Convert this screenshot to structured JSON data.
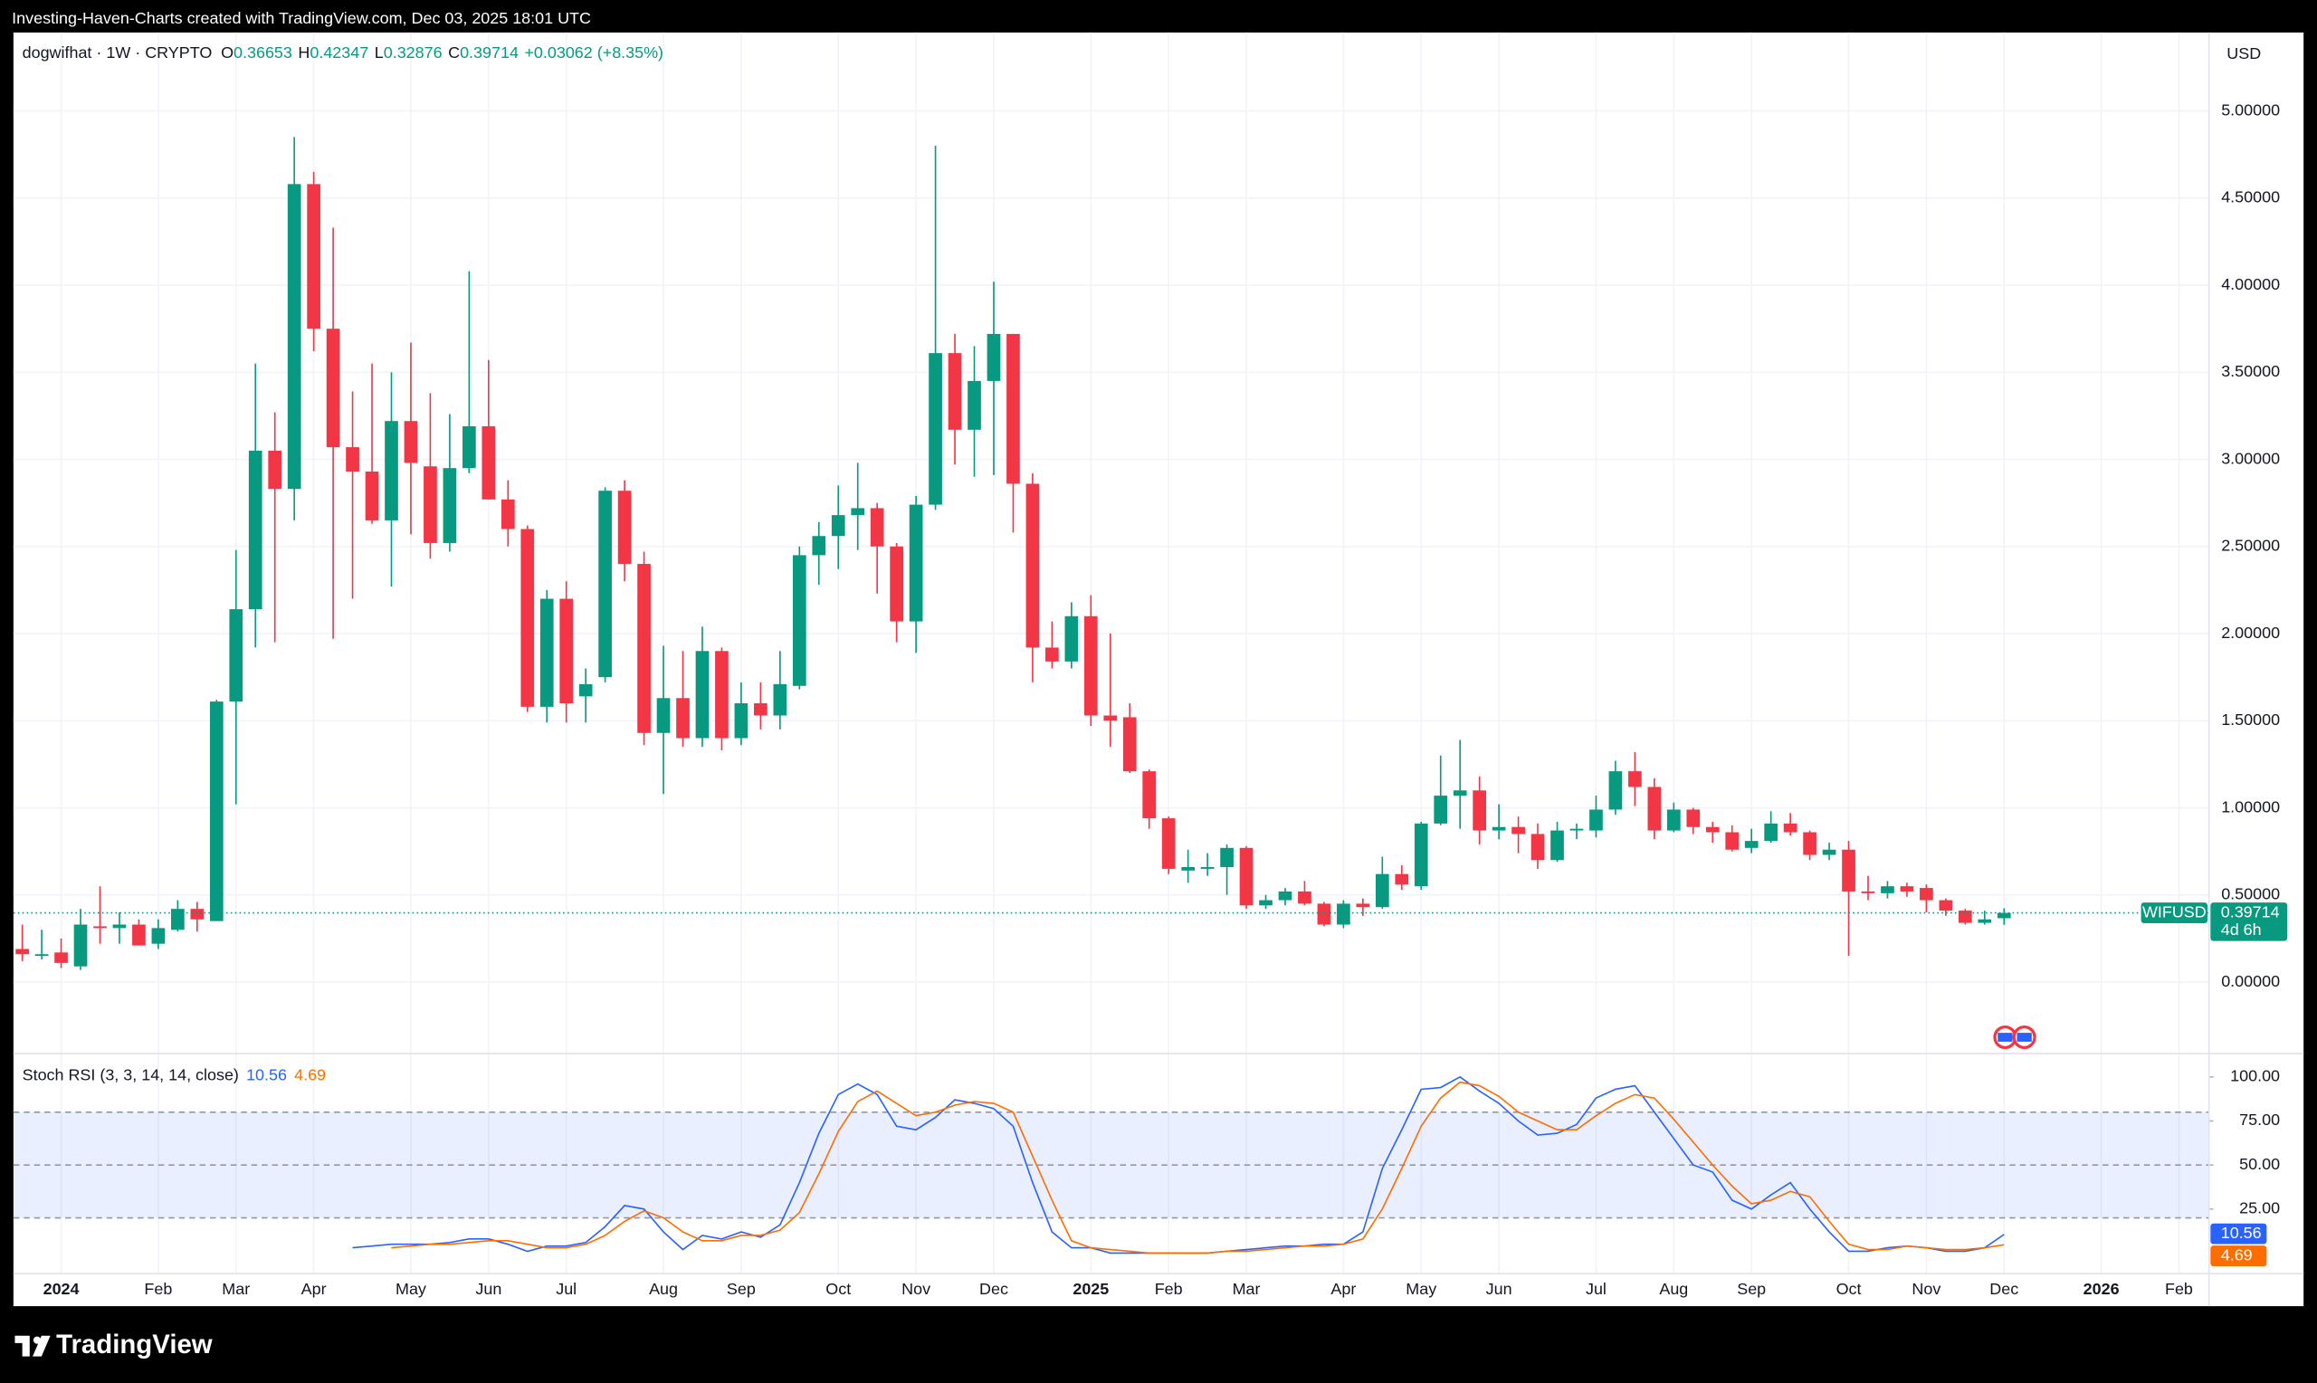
{
  "header": {
    "attribution": "Investing-Haven-Charts created with TradingView.com, Dec 03, 2025 18:01 UTC"
  },
  "chart_data": [
    {
      "type": "candlestick",
      "title": "dogwifhat · 1W · CRYPTO",
      "ohlc_labels": [
        "O",
        "H",
        "L",
        "C"
      ],
      "change_label": "+0.03062 (+8.35%)",
      "currency": "USD",
      "symbol": "WIFUSD",
      "countdown": "4d 6h",
      "categories": [
        null,
        null,
        "2024",
        null,
        null,
        null,
        null,
        "Feb",
        null,
        null,
        null,
        "Mar",
        null,
        null,
        null,
        "Apr",
        null,
        null,
        null,
        null,
        "May",
        null,
        null,
        null,
        "Jun",
        null,
        null,
        null,
        "Jul",
        null,
        null,
        null,
        null,
        "Aug",
        null,
        null,
        null,
        "Sep",
        null,
        null,
        null,
        null,
        "Oct",
        null,
        null,
        null,
        "Nov",
        null,
        null,
        null,
        "Dec",
        null,
        null,
        null,
        null,
        "2025",
        null,
        null,
        null,
        "Feb",
        null,
        null,
        null,
        "Mar",
        null,
        null,
        null,
        null,
        "Apr",
        null,
        null,
        null,
        "May",
        null,
        null,
        null,
        "Jun",
        null,
        null,
        null,
        null,
        "Jul",
        null,
        null,
        null,
        "Aug",
        null,
        null,
        null,
        "Sep",
        null,
        null,
        null,
        null,
        "Oct",
        null,
        null,
        null,
        "Nov",
        null,
        null,
        null,
        "Dec",
        null,
        null,
        null,
        null,
        "2026",
        null,
        null,
        null,
        "Feb"
      ],
      "open": [
        0.19,
        0.15,
        0.17,
        0.09,
        0.32,
        0.31,
        0.33,
        0.22,
        0.3,
        0.42,
        0.35,
        1.61,
        2.14,
        3.05,
        2.83,
        4.58,
        3.75,
        3.07,
        2.93,
        2.65,
        3.22,
        2.96,
        2.52,
        2.95,
        3.19,
        2.77,
        2.6,
        1.58,
        2.2,
        1.64,
        1.75,
        2.82,
        2.4,
        1.43,
        1.63,
        1.4,
        1.9,
        1.4,
        1.6,
        1.53,
        1.7,
        2.45,
        2.56,
        2.68,
        2.72,
        2.5,
        2.07,
        2.74,
        3.61,
        3.17,
        3.45,
        3.72,
        2.86,
        1.92,
        1.84,
        2.1,
        1.53,
        1.52,
        1.21,
        0.94,
        0.64,
        0.65,
        0.66,
        0.77,
        0.44,
        0.47,
        0.52,
        0.45,
        0.33,
        0.45,
        0.43,
        0.62,
        0.55,
        0.91,
        1.07,
        1.1,
        0.87,
        0.89,
        0.85,
        0.7,
        0.87,
        0.87,
        0.99,
        1.21,
        1.12,
        0.87,
        0.99,
        0.89,
        0.86,
        0.77,
        0.81,
        0.91,
        0.86,
        0.73,
        0.76,
        0.52,
        0.51,
        0.55,
        0.54,
        0.47,
        0.41,
        0.34,
        0.36653,
        null,
        null,
        null,
        null,
        null,
        null,
        null,
        null,
        null
      ],
      "high": [
        0.33,
        0.3,
        0.25,
        0.42,
        0.55,
        0.4,
        0.36,
        0.36,
        0.47,
        0.46,
        1.62,
        2.48,
        3.55,
        3.27,
        4.85,
        4.65,
        4.33,
        3.39,
        3.55,
        3.5,
        3.67,
        3.38,
        3.26,
        4.08,
        3.57,
        2.88,
        2.62,
        2.25,
        2.3,
        1.8,
        2.84,
        2.88,
        2.47,
        1.93,
        1.9,
        2.04,
        1.92,
        1.72,
        1.72,
        1.9,
        2.5,
        2.64,
        2.85,
        2.98,
        2.75,
        2.52,
        2.79,
        4.8,
        3.72,
        3.65,
        4.02,
        3.72,
        2.92,
        2.07,
        2.18,
        2.22,
        2.0,
        1.6,
        1.22,
        0.95,
        0.76,
        0.74,
        0.79,
        0.78,
        0.5,
        0.54,
        0.58,
        0.46,
        0.47,
        0.48,
        0.72,
        0.67,
        0.92,
        1.3,
        1.39,
        1.18,
        1.02,
        0.95,
        0.91,
        0.92,
        0.91,
        1.07,
        1.27,
        1.32,
        1.17,
        1.03,
        1.0,
        0.92,
        0.9,
        0.88,
        0.98,
        0.97,
        0.87,
        0.8,
        0.81,
        0.61,
        0.58,
        0.57,
        0.56,
        0.48,
        0.42,
        0.41,
        0.42347,
        null,
        null,
        null,
        null,
        null,
        null,
        null,
        null,
        null
      ],
      "low": [
        0.12,
        0.13,
        0.08,
        0.07,
        0.22,
        0.22,
        0.21,
        0.19,
        0.29,
        0.29,
        0.35,
        1.02,
        1.92,
        1.95,
        2.65,
        3.62,
        1.97,
        2.2,
        2.63,
        2.27,
        2.57,
        2.43,
        2.47,
        2.92,
        2.77,
        2.5,
        1.55,
        1.49,
        1.49,
        1.49,
        1.72,
        2.3,
        1.36,
        1.08,
        1.35,
        1.35,
        1.33,
        1.36,
        1.45,
        1.45,
        1.68,
        2.28,
        2.37,
        2.48,
        2.23,
        1.95,
        1.89,
        2.71,
        2.97,
        2.9,
        2.91,
        2.58,
        1.72,
        1.8,
        1.8,
        1.47,
        1.35,
        1.2,
        0.88,
        0.62,
        0.57,
        0.61,
        0.5,
        0.42,
        0.42,
        0.44,
        0.44,
        0.32,
        0.31,
        0.38,
        0.42,
        0.53,
        0.53,
        0.9,
        0.88,
        0.79,
        0.82,
        0.74,
        0.65,
        0.69,
        0.82,
        0.83,
        0.96,
        1.01,
        0.82,
        0.86,
        0.85,
        0.8,
        0.75,
        0.74,
        0.8,
        0.84,
        0.7,
        0.7,
        0.15,
        0.47,
        0.48,
        0.49,
        0.4,
        0.38,
        0.33,
        0.33,
        0.32876,
        null,
        null,
        null,
        null,
        null,
        null,
        null,
        null,
        null
      ],
      "close": [
        0.16,
        0.16,
        0.11,
        0.33,
        0.31,
        0.33,
        0.21,
        0.31,
        0.42,
        0.36,
        1.61,
        2.14,
        3.05,
        2.83,
        4.58,
        3.75,
        3.07,
        2.93,
        2.65,
        3.22,
        2.98,
        2.52,
        2.95,
        3.19,
        2.77,
        2.6,
        1.58,
        2.2,
        1.6,
        1.71,
        2.82,
        2.4,
        1.43,
        1.63,
        1.4,
        1.9,
        1.4,
        1.6,
        1.53,
        1.71,
        2.45,
        2.56,
        2.68,
        2.72,
        2.5,
        2.07,
        2.74,
        3.61,
        3.17,
        3.45,
        3.72,
        2.86,
        1.92,
        1.84,
        2.1,
        1.53,
        1.5,
        1.21,
        0.94,
        0.65,
        0.66,
        0.66,
        0.77,
        0.44,
        0.47,
        0.52,
        0.45,
        0.33,
        0.45,
        0.43,
        0.62,
        0.56,
        0.91,
        1.07,
        1.1,
        0.87,
        0.89,
        0.85,
        0.7,
        0.87,
        0.88,
        0.99,
        1.21,
        1.12,
        0.87,
        0.99,
        0.89,
        0.86,
        0.76,
        0.81,
        0.91,
        0.86,
        0.73,
        0.76,
        0.52,
        0.51,
        0.55,
        0.52,
        0.47,
        0.41,
        0.34,
        0.36,
        0.39714,
        null,
        null,
        null,
        null,
        null,
        null,
        null,
        null,
        null
      ],
      "up_color": "#089981",
      "down_color": "#f23645",
      "ylim": [
        -0.41,
        5.45
      ],
      "yticks": [
        {
          "value": 0,
          "label": "0.00000"
        },
        {
          "value": 0.5,
          "label": "0.50000"
        },
        {
          "value": 1,
          "label": "1.00000"
        },
        {
          "value": 1.5,
          "label": "1.50000"
        },
        {
          "value": 2,
          "label": "2.00000"
        },
        {
          "value": 2.5,
          "label": "2.50000"
        },
        {
          "value": 3,
          "label": "3.00000"
        },
        {
          "value": 3.5,
          "label": "3.50000"
        },
        {
          "value": 4,
          "label": "4.00000"
        },
        {
          "value": 4.5,
          "label": "4.50000"
        },
        {
          "value": 5,
          "label": "5.00000"
        }
      ],
      "grid": true
    },
    {
      "type": "line",
      "title": "Stoch RSI (3, 3, 14, 14, close)",
      "series": [
        {
          "color": "#2962ff",
          "values": [
            null,
            null,
            null,
            null,
            null,
            null,
            null,
            null,
            null,
            null,
            null,
            null,
            null,
            null,
            null,
            null,
            null,
            3,
            4,
            5,
            5,
            5,
            6,
            8,
            8,
            5,
            1,
            4,
            4,
            6,
            15,
            27,
            25,
            12,
            2,
            10,
            8,
            12,
            9,
            16,
            40,
            68,
            90,
            96,
            90,
            72,
            70,
            77,
            87,
            85,
            82,
            72,
            40,
            12,
            3,
            3,
            0,
            0,
            0,
            0,
            0,
            0,
            1,
            2,
            3,
            4,
            4,
            5,
            5,
            12,
            48,
            70,
            93,
            94,
            100,
            92,
            85,
            75,
            67,
            68,
            73,
            88,
            93,
            95,
            80,
            65,
            50,
            46,
            30,
            25,
            33,
            40,
            25,
            12,
            1,
            1,
            3,
            4,
            3,
            1,
            1,
            3,
            10.56,
            null,
            null,
            null,
            null,
            null,
            null,
            null,
            null,
            null
          ]
        },
        {
          "color": "#ff6d00",
          "values": [
            null,
            null,
            null,
            null,
            null,
            null,
            null,
            null,
            null,
            null,
            null,
            null,
            null,
            null,
            null,
            null,
            null,
            null,
            null,
            3,
            4,
            5,
            5,
            6,
            7,
            7,
            5,
            3,
            3,
            5,
            10,
            18,
            24,
            20,
            12,
            7,
            7,
            10,
            10,
            13,
            23,
            45,
            69,
            86,
            92,
            85,
            78,
            80,
            84,
            86,
            85,
            80,
            55,
            30,
            7,
            3,
            2,
            1,
            0,
            0,
            0,
            0,
            1,
            1,
            2,
            3,
            4,
            4,
            5,
            8,
            25,
            48,
            72,
            88,
            97,
            95,
            89,
            80,
            75,
            70,
            70,
            78,
            85,
            90,
            88,
            76,
            63,
            50,
            38,
            28,
            30,
            35,
            32,
            18,
            5,
            2,
            2,
            4,
            3,
            2,
            2,
            3,
            4.69,
            null,
            null,
            null,
            null,
            null,
            null,
            null,
            null,
            null
          ]
        }
      ],
      "ylim": [
        -11.7,
        113.3
      ],
      "yticks": [
        {
          "value": 25,
          "label": "25.00"
        },
        {
          "value": 50,
          "label": "50.00"
        },
        {
          "value": 75,
          "label": "75.00"
        },
        {
          "value": 100,
          "label": "100.00"
        }
      ],
      "hlines": [
        80,
        50,
        20
      ],
      "band": [
        20,
        80
      ],
      "band_color": "#2962ff"
    }
  ],
  "footer": {
    "brand": "TradingView"
  }
}
